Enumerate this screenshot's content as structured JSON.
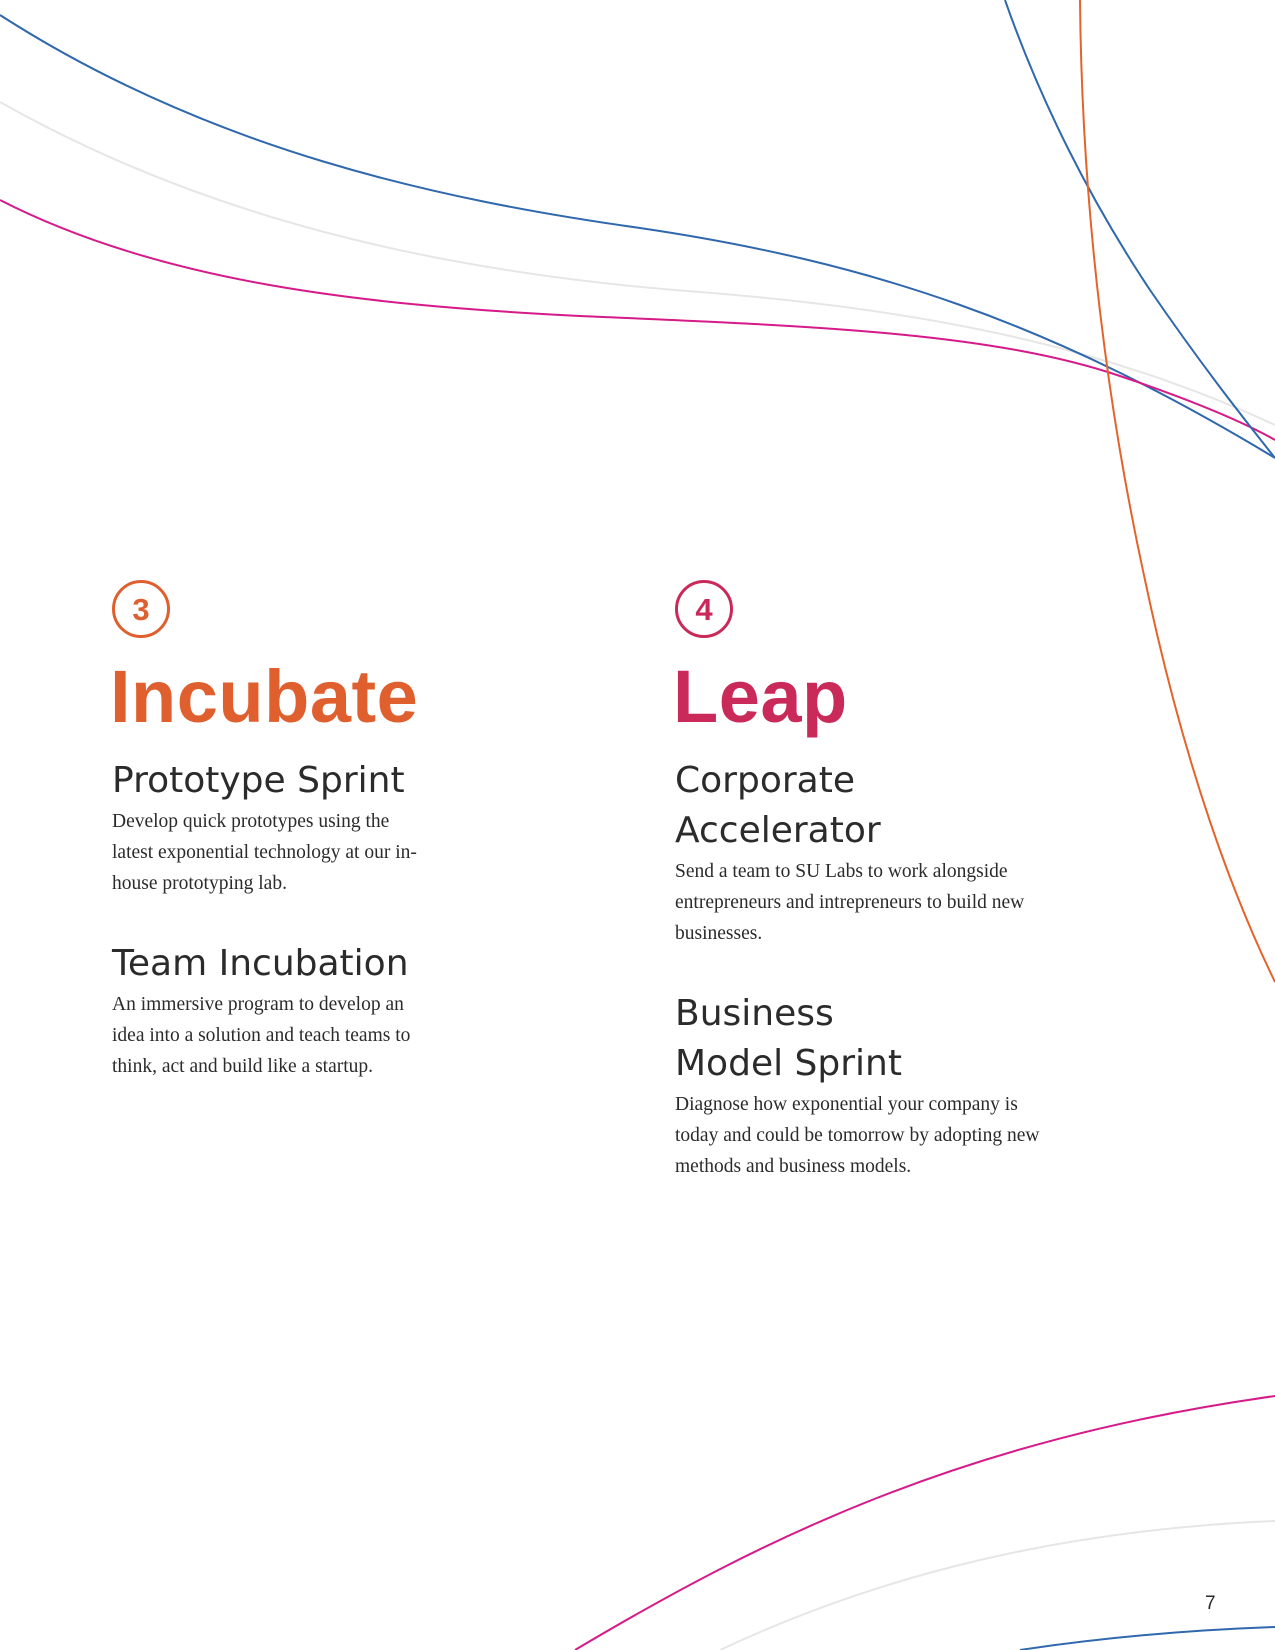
{
  "colors": {
    "incubate_accent": "#df5f2e",
    "leap_accent": "#c92a59",
    "line_blue": "#2f68ad",
    "line_pink": "#d61a8a",
    "line_orange": "#e3642a",
    "line_gray": "#e6e6e6"
  },
  "sections": [
    {
      "step": "3",
      "title": "Incubate",
      "items": [
        {
          "heading": "Prototype Sprint",
          "body": "Develop quick prototypes using the latest exponential technology at our in-house prototyping lab."
        },
        {
          "heading": "Team Incubation",
          "body": "An immersive program to develop an idea into a solution and teach teams to think, act and build like a startup."
        }
      ]
    },
    {
      "step": "4",
      "title": "Leap",
      "items": [
        {
          "heading": "Corporate Accelerator",
          "body": "Send a team to SU Labs to work alongside entrepreneurs and intrepreneurs to build new businesses."
        },
        {
          "heading": "Business Model Sprint",
          "body": "Diagnose how exponential your company is today and could be tomorrow by adopting new methods and business models."
        }
      ]
    }
  ],
  "page_number": "7"
}
